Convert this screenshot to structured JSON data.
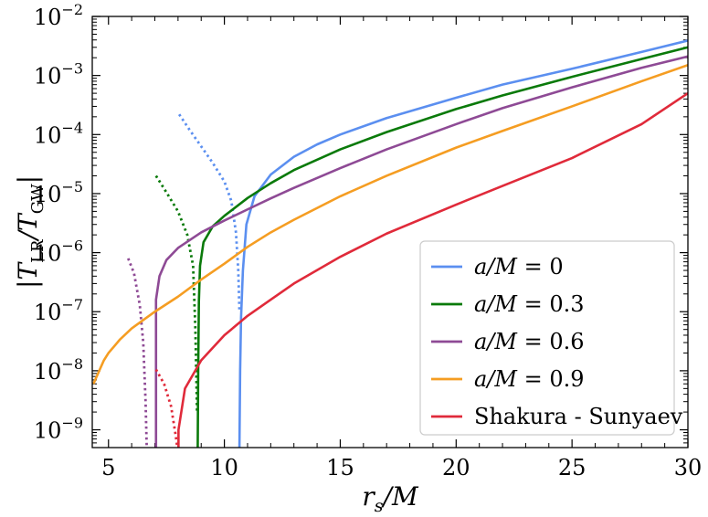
{
  "chart_data": {
    "type": "line",
    "title": "",
    "xlabel": "r_s/M",
    "ylabel": "|T_LR/T_GW|",
    "xlim": [
      4.3,
      30
    ],
    "ylim": [
      5e-10,
      0.01
    ],
    "yscale": "log",
    "x_ticks": [
      5,
      10,
      15,
      20,
      25,
      30
    ],
    "x_tick_labels": [
      "5",
      "10",
      "15",
      "20",
      "25",
      "30"
    ],
    "y_ticks_exp": [
      -9,
      -8,
      -7,
      -6,
      -5,
      -4,
      -3,
      -2
    ],
    "y_tick_base": "10",
    "legend_position": "lower-right",
    "series": [
      {
        "name": "a/M = 0",
        "label_var": "a/M",
        "label_value": "= 0",
        "color": "#5b8ff0",
        "solid": [
          [
            10.65,
            5e-10
          ],
          [
            10.68,
            1e-08
          ],
          [
            10.72,
            8e-08
          ],
          [
            10.8,
            5e-07
          ],
          [
            10.95,
            3e-06
          ],
          [
            11.3,
            9e-06
          ],
          [
            12,
            2.1e-05
          ],
          [
            13,
            4.2e-05
          ],
          [
            14,
            6.8e-05
          ],
          [
            15,
            0.0001
          ],
          [
            17,
            0.00019
          ],
          [
            20,
            0.00042
          ],
          [
            22,
            0.0007
          ],
          [
            25,
            0.0013
          ],
          [
            28,
            0.0025
          ],
          [
            30,
            0.0039
          ]
        ],
        "dotted": [
          [
            8.05,
            0.00022
          ],
          [
            8.5,
            0.00012
          ],
          [
            9,
            6.3e-05
          ],
          [
            9.5,
            3.3e-05
          ],
          [
            10,
            1.6e-05
          ],
          [
            10.3,
            7.5e-06
          ],
          [
            10.5,
            2.2e-06
          ],
          [
            10.6,
            5e-07
          ],
          [
            10.65,
            1e-07
          ]
        ]
      },
      {
        "name": "a/M = 0.3",
        "label_var": "a/M",
        "label_value": "= 0.3",
        "color": "#0a7a0a",
        "solid": [
          [
            8.85,
            5e-10
          ],
          [
            8.87,
            1e-08
          ],
          [
            8.9,
            1.5e-07
          ],
          [
            8.95,
            6e-07
          ],
          [
            9.1,
            1.5e-06
          ],
          [
            9.5,
            2.8e-06
          ],
          [
            10,
            4.2e-06
          ],
          [
            11,
            8.4e-06
          ],
          [
            12,
            1.5e-05
          ],
          [
            13,
            2.5e-05
          ],
          [
            15,
            5.6e-05
          ],
          [
            17,
            0.00011
          ],
          [
            20,
            0.00027
          ],
          [
            22,
            0.00046
          ],
          [
            25,
            0.00095
          ],
          [
            28,
            0.0019
          ],
          [
            30,
            0.003
          ]
        ],
        "dotted": [
          [
            7.05,
            2e-05
          ],
          [
            7.5,
            1.05e-05
          ],
          [
            8,
            5e-06
          ],
          [
            8.4,
            2e-06
          ],
          [
            8.65,
            6e-07
          ],
          [
            8.75,
            5e-08
          ],
          [
            8.82,
            2e-09
          ]
        ]
      },
      {
        "name": "a/M = 0.6",
        "label_var": "a/M",
        "label_value": "= 0.6",
        "color": "#8e4a95",
        "solid": [
          [
            7.05,
            5e-10
          ],
          [
            7.05,
            1.6e-07
          ],
          [
            7.2,
            4e-07
          ],
          [
            7.5,
            7.5e-07
          ],
          [
            8,
            1.2e-06
          ],
          [
            9,
            2.2e-06
          ],
          [
            10,
            3.5e-06
          ],
          [
            11,
            5.4e-06
          ],
          [
            12,
            8.3e-06
          ],
          [
            13,
            1.25e-05
          ],
          [
            15,
            2.7e-05
          ],
          [
            17,
            5.6e-05
          ],
          [
            20,
            0.00015
          ],
          [
            22,
            0.00028
          ],
          [
            25,
            0.00063
          ],
          [
            28,
            0.00135
          ],
          [
            30,
            0.0021
          ]
        ],
        "dotted": [
          [
            5.85,
            8e-07
          ],
          [
            6.1,
            4.5e-07
          ],
          [
            6.35,
            1.3e-07
          ],
          [
            6.5,
            3e-08
          ],
          [
            6.6,
            3e-09
          ],
          [
            6.65,
            5e-10
          ]
        ]
      },
      {
        "name": "a/M = 0.9",
        "label_var": "a/M",
        "label_value": "= 0.9",
        "color": "#f59d22",
        "solid": [
          [
            4.35,
            6e-09
          ],
          [
            4.8,
            1.5e-08
          ],
          [
            5,
            2e-08
          ],
          [
            5.5,
            3.4e-08
          ],
          [
            6,
            5.2e-08
          ],
          [
            7,
            1e-07
          ],
          [
            8,
            1.8e-07
          ],
          [
            9,
            3.5e-07
          ],
          [
            10,
            6.5e-07
          ],
          [
            11,
            1.25e-06
          ],
          [
            12,
            2.2e-06
          ],
          [
            13,
            3.6e-06
          ],
          [
            15,
            9e-06
          ],
          [
            17,
            2e-05
          ],
          [
            20,
            6e-05
          ],
          [
            22,
            0.000115
          ],
          [
            25,
            0.0003
          ],
          [
            28,
            0.0008
          ],
          [
            30,
            0.0015
          ]
        ],
        "dotted": []
      },
      {
        "name": "Shakura - Sunyaev",
        "label_var": "",
        "label_value": "Shakura - Sunyaev",
        "color": "#e02a3a",
        "solid": [
          [
            8.02,
            5e-10
          ],
          [
            8.02,
            1e-09
          ],
          [
            8.3,
            5e-09
          ],
          [
            9,
            1.5e-08
          ],
          [
            10,
            4e-08
          ],
          [
            11,
            8.5e-08
          ],
          [
            12,
            1.6e-07
          ],
          [
            13,
            3e-07
          ],
          [
            15,
            8.5e-07
          ],
          [
            17,
            2.1e-06
          ],
          [
            20,
            6.5e-06
          ],
          [
            22,
            1.35e-05
          ],
          [
            25,
            4e-05
          ],
          [
            28,
            0.00015
          ],
          [
            30,
            0.0005
          ]
        ],
        "dotted": [
          [
            7.05,
            1.05e-08
          ],
          [
            7.4,
            6e-09
          ],
          [
            7.7,
            2.5e-09
          ],
          [
            7.9,
            8e-10
          ],
          [
            7.97,
            5e-10
          ]
        ]
      }
    ]
  }
}
